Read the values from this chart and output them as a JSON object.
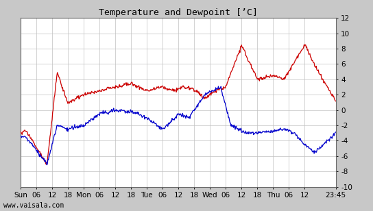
{
  "title": "Temperature and Dewpoint [’C]",
  "ylim": [
    -10,
    12
  ],
  "yticks": [
    -10,
    -8,
    -6,
    -4,
    -2,
    0,
    2,
    4,
    6,
    8,
    10,
    12
  ],
  "xtick_labels": [
    "Sun",
    "06",
    "12",
    "18",
    "Mon",
    "06",
    "12",
    "18",
    "Tue",
    "06",
    "12",
    "18",
    "Wed",
    "06",
    "12",
    "18",
    "Thu",
    "06",
    "12",
    "23:45"
  ],
  "watermark": "www.vaisala.com",
  "bg_color": "#ffffff",
  "outer_bg": "#c8c8c8",
  "grid_color": "#c0c0c0",
  "temp_color": "#cc0000",
  "dewp_color": "#0000cc",
  "n_points": 600,
  "linewidth": 0.9
}
